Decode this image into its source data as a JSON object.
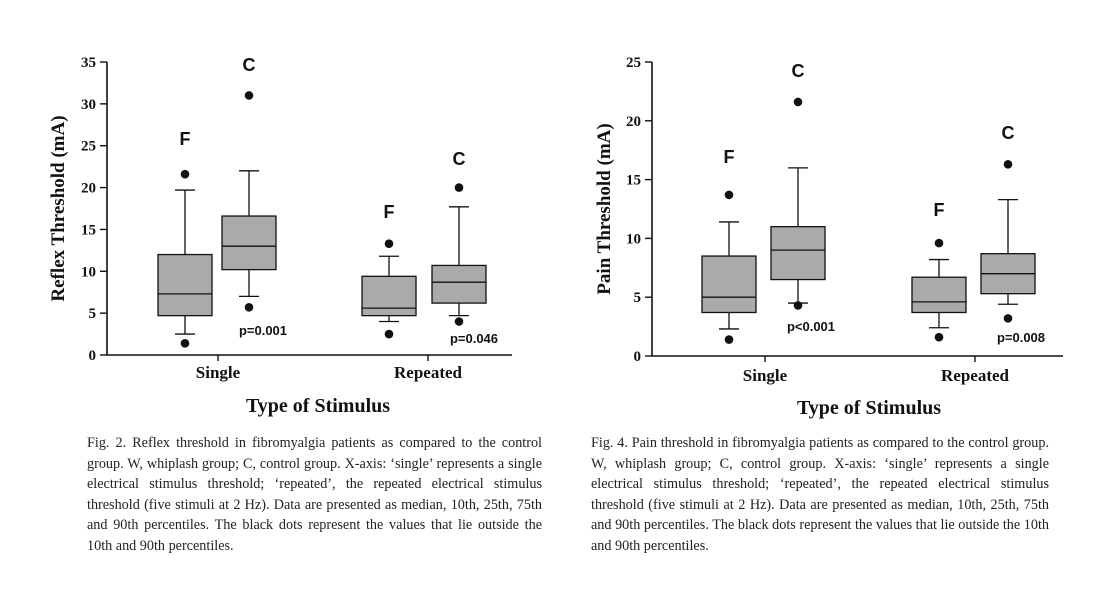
{
  "colors": {
    "box_fill": "#aaaaaa",
    "stroke": "#111111",
    "outlier": "#111111",
    "background": "#ffffff"
  },
  "charts": [
    {
      "id": "fig2",
      "caption": "Fig. 2. Reflex threshold in fibromyalgia patients as compared to the control group. W, whiplash group; C, control group. X-axis: ‘single’ represents a single electrical stimulus threshold; ‘repeated’, the repeated electrical stimulus threshold (five stimuli at 2 Hz). Data are presented as median, 10th, 25th, 75th and 90th percentiles. The black dots represent the values that lie outside the 10th and 90th percentiles."
    },
    {
      "id": "fig4",
      "caption": "Fig. 4. Pain threshold in fibromyalgia patients as compared to the control group. W, whiplash group; C, control group. X-axis: ‘single’ represents a single electrical stimulus threshold; ‘repeated’, the repeated electrical stimulus threshold (five stimuli at 2 Hz). Data are presented as median, 10th, 25th, 75th and 90th percentiles. The black dots represent the values that lie outside the 10th and 90th percentiles."
    }
  ],
  "chart_data": [
    {
      "type": "box",
      "xlabel": "Type of Stimulus",
      "ylabel": "Reflex Threshold (mA)",
      "ylim": [
        0,
        35
      ],
      "yticks": [
        0,
        5,
        10,
        15,
        20,
        25,
        30,
        35
      ],
      "categories": [
        "Single",
        "Repeated"
      ],
      "boxes": [
        {
          "category": "Single",
          "group": "F",
          "p10": 2.5,
          "q1": 4.7,
          "median": 7.3,
          "q3": 12.0,
          "p90": 19.7,
          "outliers": [
            1.4,
            21.6
          ]
        },
        {
          "category": "Single",
          "group": "C",
          "p10": 7.0,
          "q1": 10.2,
          "median": 13.0,
          "q3": 16.6,
          "p90": 22.0,
          "outliers": [
            5.7,
            31.0
          ]
        },
        {
          "category": "Repeated",
          "group": "F",
          "p10": 4.0,
          "q1": 4.7,
          "median": 5.6,
          "q3": 9.4,
          "p90": 11.8,
          "outliers": [
            2.5,
            13.3
          ]
        },
        {
          "category": "Repeated",
          "group": "C",
          "p10": 4.7,
          "q1": 6.2,
          "median": 8.7,
          "q3": 10.7,
          "p90": 17.7,
          "outliers": [
            4.0,
            20.0
          ]
        }
      ],
      "annotations": [
        {
          "category": "Single",
          "text": "p=0.001"
        },
        {
          "category": "Repeated",
          "text": "p=0.046"
        }
      ]
    },
    {
      "type": "box",
      "xlabel": "Type of Stimulus",
      "ylabel": "Pain Threshold (mA)",
      "ylim": [
        0,
        25
      ],
      "yticks": [
        0,
        5,
        10,
        15,
        20,
        25
      ],
      "categories": [
        "Single",
        "Repeated"
      ],
      "boxes": [
        {
          "category": "Single",
          "group": "F",
          "p10": 2.3,
          "q1": 3.7,
          "median": 5.0,
          "q3": 8.5,
          "p90": 11.4,
          "outliers": [
            1.4,
            13.7
          ]
        },
        {
          "category": "Single",
          "group": "C",
          "p10": 4.5,
          "q1": 6.5,
          "median": 9.0,
          "q3": 11.0,
          "p90": 16.0,
          "outliers": [
            4.3,
            21.6
          ]
        },
        {
          "category": "Repeated",
          "group": "F",
          "p10": 2.4,
          "q1": 3.7,
          "median": 4.6,
          "q3": 6.7,
          "p90": 8.2,
          "outliers": [
            1.6,
            9.6
          ]
        },
        {
          "category": "Repeated",
          "group": "C",
          "p10": 4.4,
          "q1": 5.3,
          "median": 7.0,
          "q3": 8.7,
          "p90": 13.3,
          "outliers": [
            3.2,
            16.3
          ]
        }
      ],
      "annotations": [
        {
          "category": "Single",
          "text": "p<0.001"
        },
        {
          "category": "Repeated",
          "text": "p=0.008"
        }
      ]
    }
  ]
}
